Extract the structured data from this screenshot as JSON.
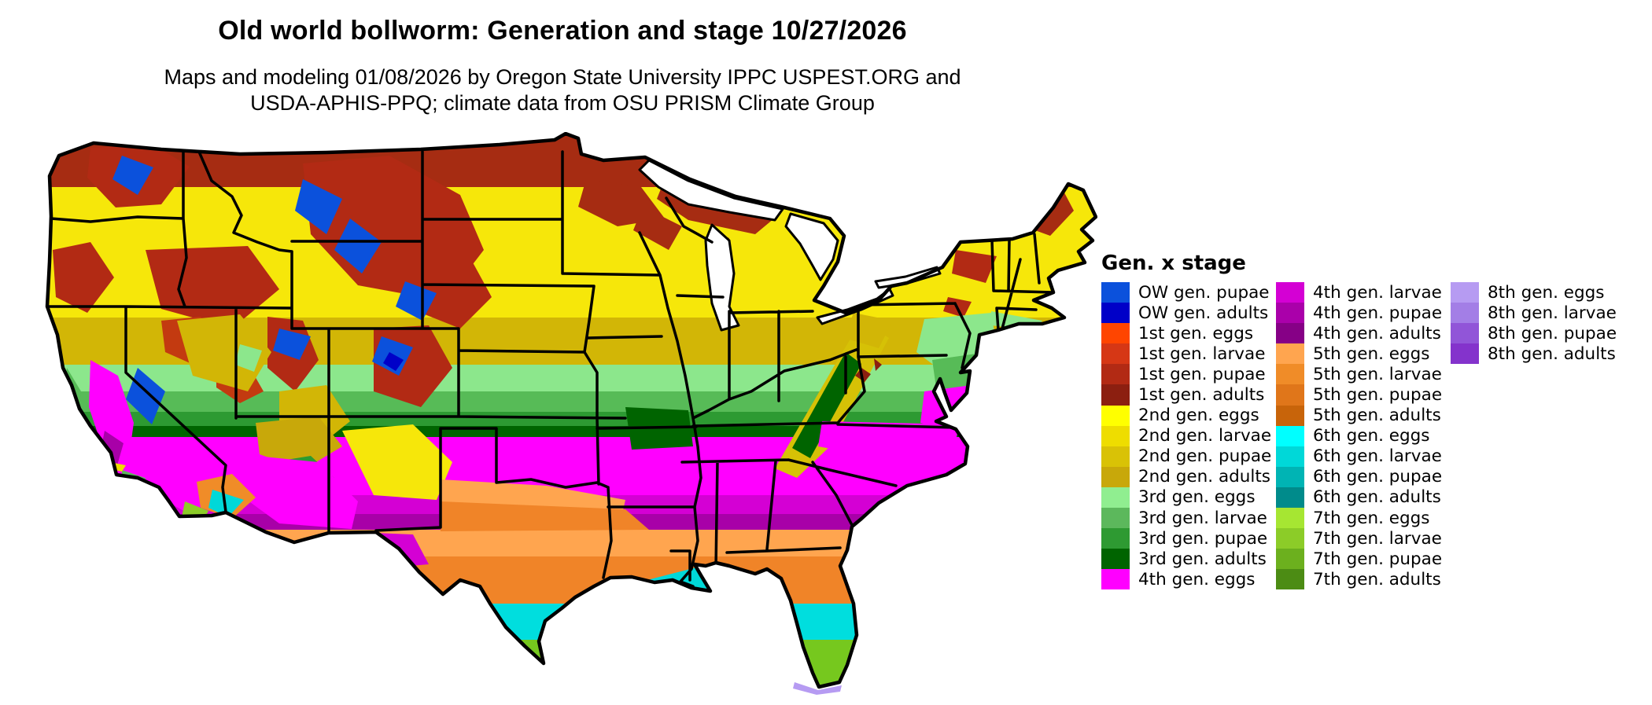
{
  "title": "Old world bollworm: Generation and stage 10/27/2026",
  "subtitle_line1": "Maps and modeling 01/08/2026 by Oregon State University IPPC USPEST.ORG and",
  "subtitle_line2": "USDA-APHIS-PPQ; climate data from OSU PRISM Climate Group",
  "map": {
    "description": "Raster phenology map of the contiguous United States colored by old world bollworm generation and life stage"
  },
  "legend": {
    "title": "Gen. x stage",
    "columns": [
      {
        "items": [
          {
            "label": "OW gen. pupae",
            "color": "#0b51dc"
          },
          {
            "label": "OW gen. adults",
            "color": "#0000c8"
          },
          {
            "label": "1st gen. eggs",
            "color": "#ff4500"
          },
          {
            "label": "1st gen. larvae",
            "color": "#d63715"
          },
          {
            "label": "1st gen. pupae",
            "color": "#b22a14"
          },
          {
            "label": "1st gen. adults",
            "color": "#8c1f10"
          },
          {
            "label": "2nd gen. eggs",
            "color": "#ffff00"
          },
          {
            "label": "2nd gen. larvae",
            "color": "#eedd00"
          },
          {
            "label": "2nd gen. pupae",
            "color": "#d9c206"
          },
          {
            "label": "2nd gen. adults",
            "color": "#c8a80a"
          },
          {
            "label": "3rd gen. eggs",
            "color": "#90ee90"
          },
          {
            "label": "3rd gen. larvae",
            "color": "#5cb85c"
          },
          {
            "label": "3rd gen. pupae",
            "color": "#2e9a32"
          },
          {
            "label": "3rd gen. adults",
            "color": "#006400"
          },
          {
            "label": "4th gen. eggs",
            "color": "#ff00ff"
          }
        ]
      },
      {
        "items": [
          {
            "label": "4th gen. larvae",
            "color": "#d400d4"
          },
          {
            "label": "4th gen. pupae",
            "color": "#aa00aa"
          },
          {
            "label": "4th gen. adults",
            "color": "#860086"
          },
          {
            "label": "5th gen. eggs",
            "color": "#ffa54f"
          },
          {
            "label": "5th gen. larvae",
            "color": "#f08c28"
          },
          {
            "label": "5th gen. pupae",
            "color": "#e0761a"
          },
          {
            "label": "5th gen. adults",
            "color": "#c8640a"
          },
          {
            "label": "6th gen. eggs",
            "color": "#00ffff"
          },
          {
            "label": "6th gen. larvae",
            "color": "#00d8d8"
          },
          {
            "label": "6th gen. pupae",
            "color": "#00b4b4"
          },
          {
            "label": "6th gen. adults",
            "color": "#008b8b"
          },
          {
            "label": "7th gen. eggs",
            "color": "#a6e632"
          },
          {
            "label": "7th gen. larvae",
            "color": "#8ccc28"
          },
          {
            "label": "7th gen. pupae",
            "color": "#6cb01e"
          },
          {
            "label": "7th gen. adults",
            "color": "#4c8c14"
          }
        ]
      },
      {
        "items": [
          {
            "label": "8th gen. eggs",
            "color": "#b69bf2"
          },
          {
            "label": "8th gen. larvae",
            "color": "#a37ee6"
          },
          {
            "label": "8th gen. pupae",
            "color": "#9155d8"
          },
          {
            "label": "8th gen. adults",
            "color": "#8433cc"
          }
        ]
      }
    ]
  }
}
